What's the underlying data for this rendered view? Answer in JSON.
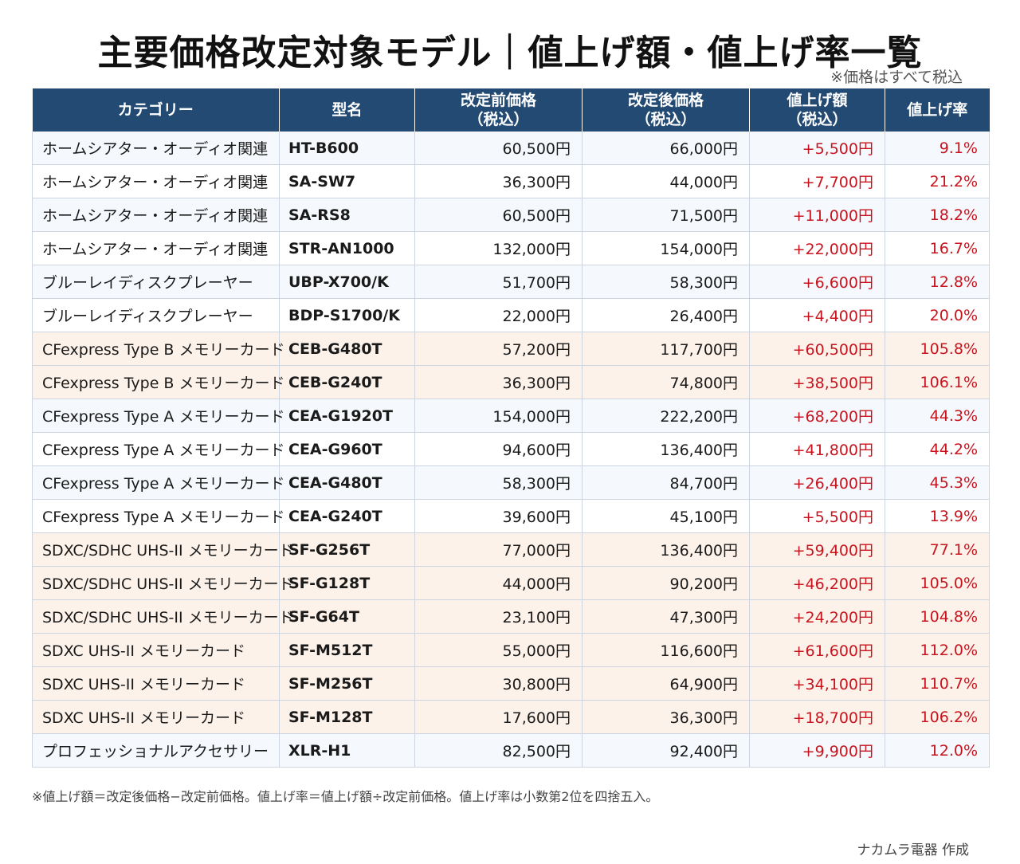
{
  "title": "主要価格改定対象モデル｜値上げ額・値上げ率一覧",
  "subnote": "※価格はすべて税込",
  "table": {
    "headers": [
      {
        "line1": "カテゴリー",
        "line2": ""
      },
      {
        "line1": "型名",
        "line2": ""
      },
      {
        "line1": "改定前価格",
        "line2": "（税込）"
      },
      {
        "line1": "改定後価格",
        "line2": "（税込）"
      },
      {
        "line1": "値上げ額",
        "line2": "（税込）"
      },
      {
        "line1": "値上げ率",
        "line2": ""
      }
    ],
    "rows": [
      {
        "category": "ホームシアター・オーディオ関連",
        "model": "HT-B600",
        "before": "60,500円",
        "after": "66,000円",
        "increase": "+5,500円",
        "rate": "9.1%",
        "tone": "blue"
      },
      {
        "category": "ホームシアター・オーディオ関連",
        "model": "SA-SW7",
        "before": "36,300円",
        "after": "44,000円",
        "increase": "+7,700円",
        "rate": "21.2%",
        "tone": "white"
      },
      {
        "category": "ホームシアター・オーディオ関連",
        "model": "SA-RS8",
        "before": "60,500円",
        "after": "71,500円",
        "increase": "+11,000円",
        "rate": "18.2%",
        "tone": "blue"
      },
      {
        "category": "ホームシアター・オーディオ関連",
        "model": "STR-AN1000",
        "before": "132,000円",
        "after": "154,000円",
        "increase": "+22,000円",
        "rate": "16.7%",
        "tone": "white"
      },
      {
        "category": "ブルーレイディスクプレーヤー",
        "model": "UBP-X700/K",
        "before": "51,700円",
        "after": "58,300円",
        "increase": "+6,600円",
        "rate": "12.8%",
        "tone": "blue"
      },
      {
        "category": "ブルーレイディスクプレーヤー",
        "model": "BDP-S1700/K",
        "before": "22,000円",
        "after": "26,400円",
        "increase": "+4,400円",
        "rate": "20.0%",
        "tone": "white"
      },
      {
        "category": "CFexpress Type B メモリーカード",
        "model": "CEB-G480T",
        "before": "57,200円",
        "after": "117,700円",
        "increase": "+60,500円",
        "rate": "105.8%",
        "tone": "peach"
      },
      {
        "category": "CFexpress Type B メモリーカード",
        "model": "CEB-G240T",
        "before": "36,300円",
        "after": "74,800円",
        "increase": "+38,500円",
        "rate": "106.1%",
        "tone": "peach"
      },
      {
        "category": "CFexpress Type A メモリーカード",
        "model": "CEA-G1920T",
        "before": "154,000円",
        "after": "222,200円",
        "increase": "+68,200円",
        "rate": "44.3%",
        "tone": "blue"
      },
      {
        "category": "CFexpress Type A メモリーカード",
        "model": "CEA-G960T",
        "before": "94,600円",
        "after": "136,400円",
        "increase": "+41,800円",
        "rate": "44.2%",
        "tone": "white"
      },
      {
        "category": "CFexpress Type A メモリーカード",
        "model": "CEA-G480T",
        "before": "58,300円",
        "after": "84,700円",
        "increase": "+26,400円",
        "rate": "45.3%",
        "tone": "blue"
      },
      {
        "category": "CFexpress Type A メモリーカード",
        "model": "CEA-G240T",
        "before": "39,600円",
        "after": "45,100円",
        "increase": "+5,500円",
        "rate": "13.9%",
        "tone": "white"
      },
      {
        "category": "SDXC/SDHC UHS-II メモリーカード",
        "model": "SF-G256T",
        "before": "77,000円",
        "after": "136,400円",
        "increase": "+59,400円",
        "rate": "77.1%",
        "tone": "peach"
      },
      {
        "category": "SDXC/SDHC UHS-II メモリーカード",
        "model": "SF-G128T",
        "before": "44,000円",
        "after": "90,200円",
        "increase": "+46,200円",
        "rate": "105.0%",
        "tone": "peach"
      },
      {
        "category": "SDXC/SDHC UHS-II メモリーカード",
        "model": "SF-G64T",
        "before": "23,100円",
        "after": "47,300円",
        "increase": "+24,200円",
        "rate": "104.8%",
        "tone": "peach"
      },
      {
        "category": "SDXC UHS-II メモリーカード",
        "model": "SF-M512T",
        "before": "55,000円",
        "after": "116,600円",
        "increase": "+61,600円",
        "rate": "112.0%",
        "tone": "peach"
      },
      {
        "category": "SDXC UHS-II メモリーカード",
        "model": "SF-M256T",
        "before": "30,800円",
        "after": "64,900円",
        "increase": "+34,100円",
        "rate": "110.7%",
        "tone": "peach"
      },
      {
        "category": "SDXC UHS-II メモリーカード",
        "model": "SF-M128T",
        "before": "17,600円",
        "after": "36,300円",
        "increase": "+18,700円",
        "rate": "106.2%",
        "tone": "peach"
      },
      {
        "category": "プロフェッショナルアクセサリー",
        "model": "XLR-H1",
        "before": "82,500円",
        "after": "92,400円",
        "increase": "+9,900円",
        "rate": "12.0%",
        "tone": "blue"
      }
    ]
  },
  "colors": {
    "header_bg": "#234a73",
    "increase_text": "#c8141e",
    "row_blue": "#f5f8fc",
    "row_peach": "#fdf2ea"
  },
  "footnote": "※値上げ額＝改定後価格−改定前価格。値上げ率＝値上げ額÷改定前価格。値上げ率は小数第2位を四捨五入。",
  "credit": "ナカムラ電器 作成"
}
